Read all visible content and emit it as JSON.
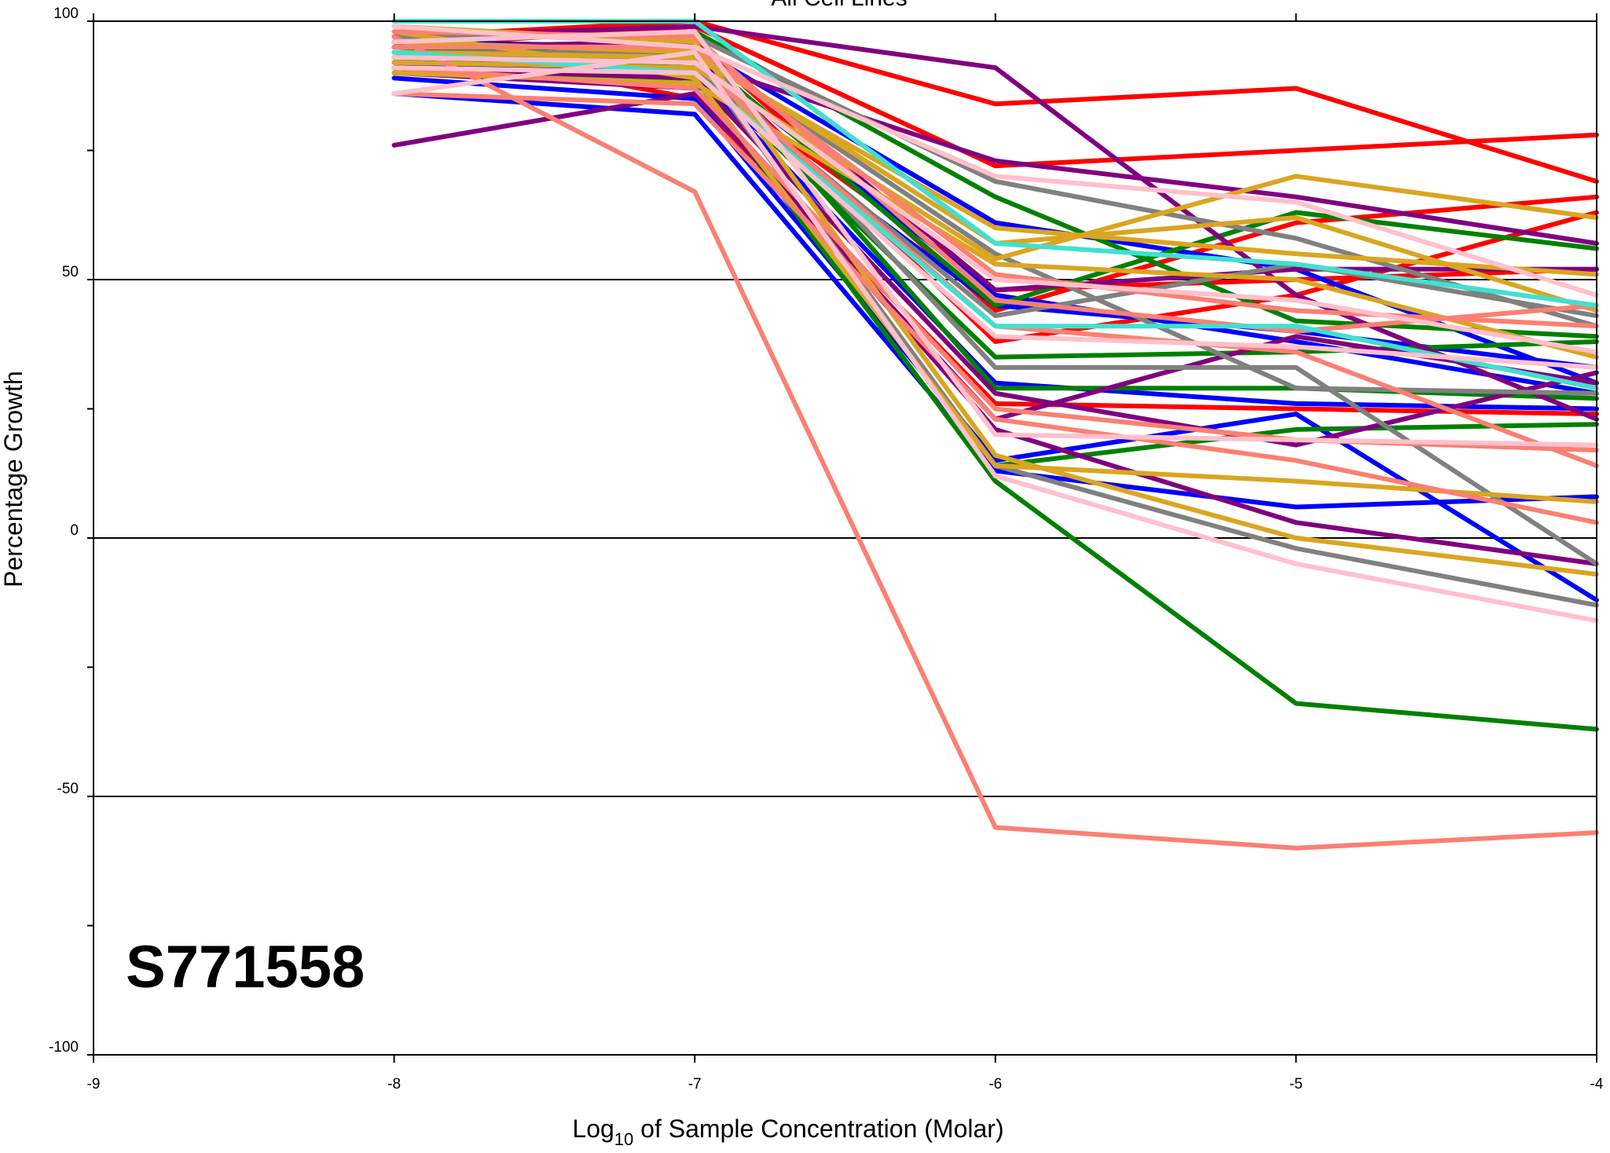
{
  "chart_data": {
    "type": "line",
    "title": "All Cell Lines",
    "compound_label": "S771558",
    "xlabel_main": "Log",
    "xlabel_sub": "10",
    "xlabel_rest": " of Sample Concentration (Molar)",
    "ylabel": "Percentage Growth",
    "xlim": [
      -9,
      -4
    ],
    "ylim": [
      -100,
      100
    ],
    "x_ticks": [
      -9,
      -8,
      -7,
      -6,
      -5,
      -4
    ],
    "x_tick_labels": [
      "-9",
      "-8",
      "-7",
      "-6",
      "-5",
      "-4"
    ],
    "y_ticks": [
      -100,
      -50,
      0,
      50,
      100
    ],
    "y_tick_labels": [
      "-100",
      "-50",
      "0",
      "50",
      "100"
    ],
    "y_minor_ticks": [
      -75,
      -25,
      25,
      75
    ],
    "gridlines_y": [
      -50,
      0,
      50
    ],
    "x": [
      -8,
      -7,
      -6,
      -5,
      -4
    ],
    "series": [
      {
        "color": "#ff0000",
        "values": [
          97,
          100,
          84,
          87,
          69
        ]
      },
      {
        "color": "#ff0000",
        "values": [
          95,
          99,
          72,
          75,
          78
        ]
      },
      {
        "color": "#ff0000",
        "values": [
          93,
          96,
          44,
          61,
          66
        ]
      },
      {
        "color": "#ff0000",
        "values": [
          91,
          94,
          38,
          47,
          63
        ]
      },
      {
        "color": "#ff0000",
        "values": [
          94,
          90,
          48,
          50,
          52
        ]
      },
      {
        "color": "#ff0000",
        "values": [
          96,
          85,
          26,
          25,
          24
        ]
      },
      {
        "color": "#0000ff",
        "values": [
          86,
          82,
          13,
          6,
          8
        ]
      },
      {
        "color": "#0000ff",
        "values": [
          89,
          85,
          15,
          24,
          -12
        ]
      },
      {
        "color": "#0000ff",
        "values": [
          92,
          90,
          30,
          26,
          25
        ]
      },
      {
        "color": "#0000ff",
        "values": [
          94,
          93,
          47,
          38,
          28
        ]
      },
      {
        "color": "#0000ff",
        "values": [
          96,
          95,
          61,
          52,
          30
        ]
      },
      {
        "color": "#0000ff",
        "values": [
          91,
          88,
          45,
          40,
          33
        ]
      },
      {
        "color": "#008000",
        "values": [
          90,
          89,
          11,
          -32,
          -37
        ]
      },
      {
        "color": "#008000",
        "values": [
          92,
          93,
          14,
          21,
          22
        ]
      },
      {
        "color": "#008000",
        "values": [
          94,
          95,
          29,
          29,
          27
        ]
      },
      {
        "color": "#008000",
        "values": [
          96,
          98,
          66,
          42,
          39
        ]
      },
      {
        "color": "#008000",
        "values": [
          93,
          91,
          35,
          36,
          38
        ]
      },
      {
        "color": "#008000",
        "values": [
          95,
          94,
          45,
          63,
          56
        ]
      },
      {
        "color": "#800080",
        "values": [
          76,
          86,
          23,
          39,
          30
        ]
      },
      {
        "color": "#800080",
        "values": [
          97,
          99,
          91,
          47,
          23
        ]
      },
      {
        "color": "#800080",
        "values": [
          90,
          87,
          21,
          3,
          -5
        ]
      },
      {
        "color": "#800080",
        "values": [
          93,
          92,
          73,
          66,
          57
        ]
      },
      {
        "color": "#800080",
        "values": [
          95,
          96,
          48,
          52,
          52
        ]
      },
      {
        "color": "#800080",
        "values": [
          91,
          89,
          28,
          18,
          32
        ]
      },
      {
        "color": "#808080",
        "values": [
          95,
          95,
          33,
          33,
          -5
        ]
      },
      {
        "color": "#808080",
        "values": [
          93,
          93,
          14,
          -2,
          -13
        ]
      },
      {
        "color": "#808080",
        "values": [
          97,
          97,
          69,
          58,
          41
        ]
      },
      {
        "color": "#808080",
        "values": [
          92,
          91,
          43,
          53,
          43
        ]
      },
      {
        "color": "#808080",
        "values": [
          94,
          94,
          55,
          29,
          28
        ]
      },
      {
        "color": "#daa520",
        "values": [
          99,
          96,
          16,
          0,
          -7
        ]
      },
      {
        "color": "#daa520",
        "values": [
          96,
          94,
          57,
          62,
          44
        ]
      },
      {
        "color": "#daa520",
        "values": [
          92,
          91,
          54,
          70,
          62
        ]
      },
      {
        "color": "#daa520",
        "values": [
          98,
          89,
          14,
          11,
          7
        ]
      },
      {
        "color": "#daa520",
        "values": [
          94,
          93,
          60,
          55,
          51
        ]
      },
      {
        "color": "#daa520",
        "values": [
          90,
          88,
          53,
          50,
          35
        ]
      },
      {
        "color": "#fa8072",
        "values": [
          97,
          67,
          -56,
          -60,
          -57
        ]
      },
      {
        "color": "#fa8072",
        "values": [
          86,
          84,
          23,
          15,
          3
        ]
      },
      {
        "color": "#fa8072",
        "values": [
          93,
          92,
          41,
          36,
          14
        ]
      },
      {
        "color": "#fa8072",
        "values": [
          95,
          95,
          51,
          44,
          41
        ]
      },
      {
        "color": "#fa8072",
        "values": [
          91,
          87,
          25,
          19,
          17
        ]
      },
      {
        "color": "#fa8072",
        "values": [
          98,
          97,
          46,
          40,
          45
        ]
      },
      {
        "color": "#40e0d0",
        "values": [
          100,
          100,
          57,
          53,
          45
        ]
      },
      {
        "color": "#40e0d0",
        "values": [
          94,
          90,
          41,
          41,
          29
        ]
      },
      {
        "color": "#ffc0cb",
        "values": [
          86,
          94,
          12,
          -5,
          -16
        ]
      },
      {
        "color": "#ffc0cb",
        "values": [
          99,
          95,
          70,
          65,
          47
        ]
      },
      {
        "color": "#ffc0cb",
        "values": [
          93,
          92,
          50,
          46,
          36
        ]
      },
      {
        "color": "#ffc0cb",
        "values": [
          96,
          98,
          20,
          19,
          18
        ]
      },
      {
        "color": "#ffc0cb",
        "values": [
          91,
          90,
          39,
          37,
          33
        ]
      }
    ]
  }
}
